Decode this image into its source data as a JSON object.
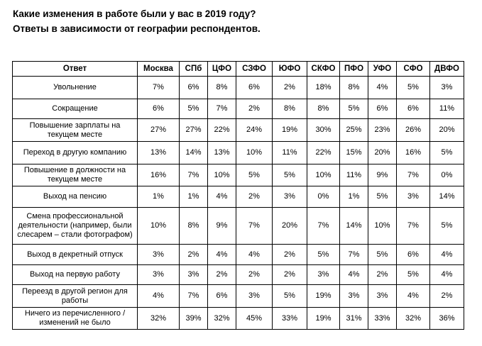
{
  "title": "Какие изменения в работе были у вас в 2019 году?",
  "subtitle": "Ответы в зависимости от географии респондентов.",
  "table": {
    "columns": [
      "Ответ",
      "Москва",
      "СПб",
      "ЦФО",
      "СЗФО",
      "ЮФО",
      "СКФО",
      "ПФО",
      "УФО",
      "СФО",
      "ДВФО"
    ],
    "rows": [
      {
        "answer": "Увольнение",
        "values": [
          "7%",
          "6%",
          "8%",
          "6%",
          "2%",
          "18%",
          "8%",
          "4%",
          "5%",
          "3%"
        ]
      },
      {
        "answer": "Сокращение",
        "values": [
          "6%",
          "5%",
          "7%",
          "2%",
          "8%",
          "8%",
          "5%",
          "6%",
          "6%",
          "11%"
        ]
      },
      {
        "answer": "Повышение зарплаты на текущем месте",
        "values": [
          "27%",
          "27%",
          "22%",
          "24%",
          "19%",
          "30%",
          "25%",
          "23%",
          "26%",
          "20%"
        ]
      },
      {
        "answer": "Переход в другую компанию",
        "values": [
          "13%",
          "14%",
          "13%",
          "10%",
          "11%",
          "22%",
          "15%",
          "20%",
          "16%",
          "5%"
        ]
      },
      {
        "answer": "Повышение в должности на текущем месте",
        "values": [
          "16%",
          "7%",
          "10%",
          "5%",
          "5%",
          "10%",
          "11%",
          "9%",
          "7%",
          "0%"
        ]
      },
      {
        "answer": "Выход на пенсию",
        "values": [
          "1%",
          "1%",
          "4%",
          "2%",
          "3%",
          "0%",
          "1%",
          "5%",
          "3%",
          "14%"
        ]
      },
      {
        "answer": "Смена профессиональной деятельности (например, были слесарем – стали фотографом)",
        "values": [
          "10%",
          "8%",
          "9%",
          "7%",
          "20%",
          "7%",
          "14%",
          "10%",
          "7%",
          "5%"
        ]
      },
      {
        "answer": "Выход в декретный отпуск",
        "values": [
          "3%",
          "2%",
          "4%",
          "4%",
          "2%",
          "5%",
          "7%",
          "5%",
          "6%",
          "4%"
        ]
      },
      {
        "answer": "Выход на первую работу",
        "values": [
          "3%",
          "3%",
          "2%",
          "2%",
          "2%",
          "3%",
          "4%",
          "2%",
          "5%",
          "4%"
        ]
      },
      {
        "answer": "Переезд в другой регион для работы",
        "values": [
          "4%",
          "7%",
          "6%",
          "3%",
          "5%",
          "19%",
          "3%",
          "3%",
          "4%",
          "2%"
        ]
      },
      {
        "answer": "Ничего из перечисленного / изменений не было",
        "values": [
          "32%",
          "39%",
          "32%",
          "45%",
          "33%",
          "19%",
          "31%",
          "33%",
          "32%",
          "36%"
        ]
      }
    ]
  }
}
